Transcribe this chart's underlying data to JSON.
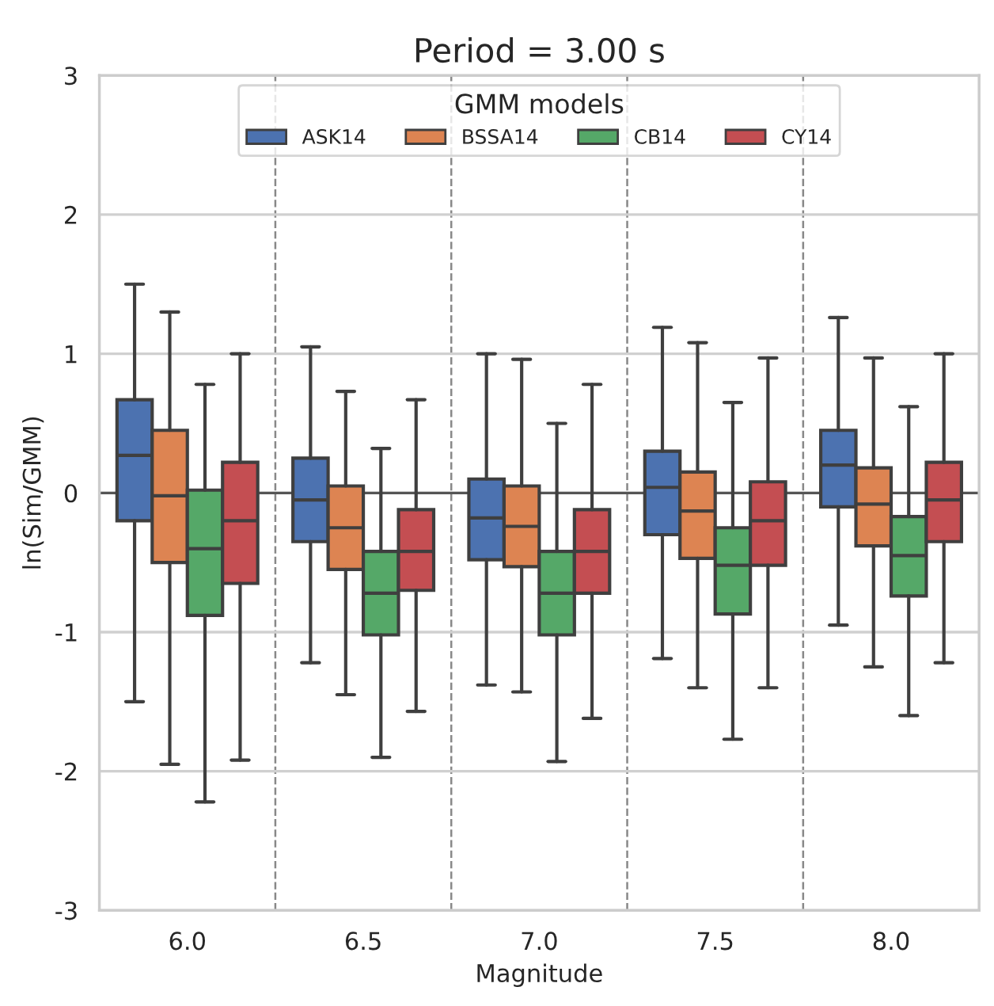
{
  "chart_data": {
    "type": "box",
    "title": "Period = 3.00 s",
    "xlabel": "Magnitude",
    "ylabel": "ln(Sim/GMM)",
    "legend_title": "GMM models",
    "categories": [
      "6.0",
      "6.5",
      "7.0",
      "7.5",
      "8.0"
    ],
    "ylim": [
      -3,
      3
    ],
    "yticks": [
      -3,
      -2,
      -1,
      0,
      1,
      2,
      3
    ],
    "grid": "y",
    "legend": "top",
    "ref_lines": [
      {
        "axis": "y",
        "value": 0,
        "color": "#555555",
        "line_style": "solid"
      }
    ],
    "series": [
      {
        "name": "ASK14",
        "color": "#4c72b0",
        "boxes": [
          {
            "low": -1.5,
            "q1": -0.2,
            "median": 0.27,
            "q3": 0.67,
            "high": 1.5
          },
          {
            "low": -1.22,
            "q1": -0.35,
            "median": -0.05,
            "q3": 0.25,
            "high": 1.05
          },
          {
            "low": -1.38,
            "q1": -0.48,
            "median": -0.18,
            "q3": 0.1,
            "high": 1.0
          },
          {
            "low": -1.19,
            "q1": -0.3,
            "median": 0.04,
            "q3": 0.3,
            "high": 1.19
          },
          {
            "low": -0.95,
            "q1": -0.1,
            "median": 0.2,
            "q3": 0.45,
            "high": 1.26
          }
        ]
      },
      {
        "name": "BSSA14",
        "color": "#dd8452",
        "boxes": [
          {
            "low": -1.95,
            "q1": -0.5,
            "median": -0.02,
            "q3": 0.45,
            "high": 1.3
          },
          {
            "low": -1.45,
            "q1": -0.55,
            "median": -0.25,
            "q3": 0.05,
            "high": 0.73
          },
          {
            "low": -1.43,
            "q1": -0.53,
            "median": -0.24,
            "q3": 0.05,
            "high": 0.96
          },
          {
            "low": -1.4,
            "q1": -0.47,
            "median": -0.13,
            "q3": 0.15,
            "high": 1.08
          },
          {
            "low": -1.25,
            "q1": -0.38,
            "median": -0.08,
            "q3": 0.18,
            "high": 0.97
          }
        ]
      },
      {
        "name": "CB14",
        "color": "#55a868",
        "boxes": [
          {
            "low": -2.22,
            "q1": -0.88,
            "median": -0.4,
            "q3": 0.02,
            "high": 0.78
          },
          {
            "low": -1.9,
            "q1": -1.02,
            "median": -0.72,
            "q3": -0.42,
            "high": 0.32
          },
          {
            "low": -1.93,
            "q1": -1.02,
            "median": -0.72,
            "q3": -0.42,
            "high": 0.5
          },
          {
            "low": -1.77,
            "q1": -0.87,
            "median": -0.52,
            "q3": -0.25,
            "high": 0.65
          },
          {
            "low": -1.6,
            "q1": -0.74,
            "median": -0.45,
            "q3": -0.17,
            "high": 0.62
          }
        ]
      },
      {
        "name": "CY14",
        "color": "#c44e52",
        "boxes": [
          {
            "low": -1.92,
            "q1": -0.65,
            "median": -0.2,
            "q3": 0.22,
            "high": 1.0
          },
          {
            "low": -1.57,
            "q1": -0.7,
            "median": -0.42,
            "q3": -0.12,
            "high": 0.67
          },
          {
            "low": -1.62,
            "q1": -0.72,
            "median": -0.42,
            "q3": -0.12,
            "high": 0.78
          },
          {
            "low": -1.4,
            "q1": -0.52,
            "median": -0.2,
            "q3": 0.08,
            "high": 0.97
          },
          {
            "low": -1.22,
            "q1": -0.35,
            "median": -0.05,
            "q3": 0.22,
            "high": 1.0
          }
        ]
      }
    ]
  }
}
